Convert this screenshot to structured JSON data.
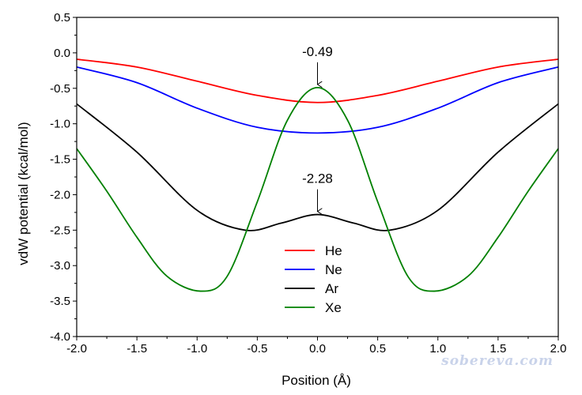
{
  "watermark": "sobereva.com",
  "chart_data": {
    "type": "line",
    "title": "",
    "xlabel": "Position (Å)",
    "ylabel": "vdW potential (kcal/mol)",
    "xlim": [
      -2.0,
      2.0
    ],
    "ylim": [
      -4.0,
      0.5
    ],
    "x_ticks": [
      "-2.0",
      "-1.5",
      "-1.0",
      "-0.5",
      "0.0",
      "0.5",
      "1.0",
      "1.5",
      "2.0"
    ],
    "y_ticks": [
      "0.5",
      "0.0",
      "-0.5",
      "-1.0",
      "-1.5",
      "-2.0",
      "-2.5",
      "-3.0",
      "-3.5",
      "-4.0"
    ],
    "legend_position": "bottom-center",
    "series": [
      {
        "name": "He",
        "color": "#ff0000",
        "x": [
          -2.0,
          -1.5,
          -1.0,
          -0.5,
          0.0,
          0.5,
          1.0,
          1.5,
          2.0
        ],
        "y": [
          -0.09,
          -0.2,
          -0.4,
          -0.6,
          -0.7,
          -0.6,
          -0.4,
          -0.2,
          -0.09
        ]
      },
      {
        "name": "Ne",
        "color": "#0000ff",
        "x": [
          -2.0,
          -1.5,
          -1.0,
          -0.5,
          0.0,
          0.5,
          1.0,
          1.5,
          2.0
        ],
        "y": [
          -0.2,
          -0.42,
          -0.78,
          -1.05,
          -1.13,
          -1.05,
          -0.78,
          -0.42,
          -0.2
        ]
      },
      {
        "name": "Ar",
        "color": "#000000",
        "x": [
          -2.0,
          -1.5,
          -1.0,
          -0.6,
          -0.3,
          0.0,
          0.3,
          0.6,
          1.0,
          1.5,
          2.0
        ],
        "y": [
          -0.72,
          -1.4,
          -2.22,
          -2.5,
          -2.4,
          -2.28,
          -2.4,
          -2.5,
          -2.22,
          -1.4,
          -0.72
        ]
      },
      {
        "name": "Xe",
        "color": "#008000",
        "x": [
          -2.0,
          -1.75,
          -1.5,
          -1.25,
          -0.97,
          -0.75,
          -0.5,
          -0.25,
          0.0,
          0.25,
          0.5,
          0.75,
          0.97,
          1.25,
          1.5,
          1.75,
          2.0
        ],
        "y": [
          -1.35,
          -1.95,
          -2.6,
          -3.15,
          -3.36,
          -3.15,
          -2.1,
          -0.95,
          -0.49,
          -0.95,
          -2.1,
          -3.15,
          -3.36,
          -3.15,
          -2.6,
          -1.95,
          -1.35
        ]
      }
    ],
    "annotations": [
      {
        "text": "-0.49",
        "x": 0.0,
        "y": -0.49
      },
      {
        "text": "-2.28",
        "x": 0.0,
        "y": -2.28
      }
    ]
  }
}
